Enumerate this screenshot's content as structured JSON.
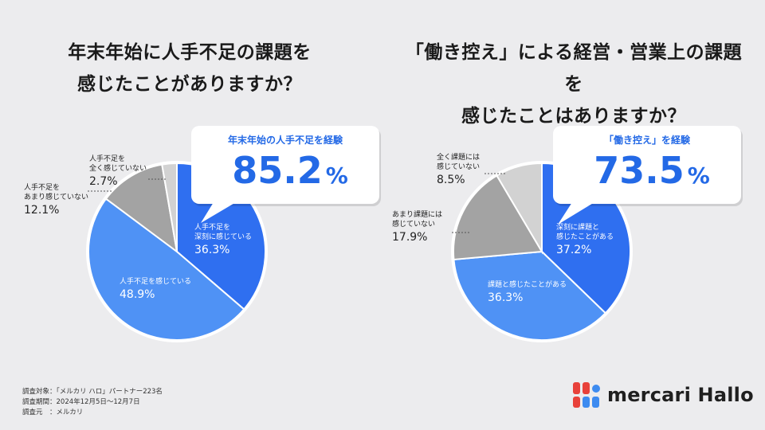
{
  "colors": {
    "background": "#ececee",
    "dark_blue": "#2f6ff0",
    "light_blue": "#4f92f5",
    "gray": "#a3a3a3",
    "light_gray": "#d2d2d2",
    "accent_blue": "#2369e6",
    "logo_red": "#e8413a",
    "logo_blue": "#3d8bf0"
  },
  "chart_data": [
    {
      "type": "pie",
      "title": "年末年始に人手不足の課題を感じたことがありますか？",
      "title_lines": [
        "年末年始に人手不足の課題を",
        "感じたことがありますか？"
      ],
      "slices": [
        {
          "label_lines": [
            "人手不足を",
            "深刻に感じている"
          ],
          "value": 36.3,
          "value_label": "36.3%"
        },
        {
          "label_lines": [
            "人手不足を感じている"
          ],
          "value": 48.9,
          "value_label": "48.9%"
        },
        {
          "label_lines": [
            "人手不足を",
            "あまり感じていない"
          ],
          "value": 12.1,
          "value_label": "12.1%"
        },
        {
          "label_lines": [
            "人手不足を",
            "全く感じていない"
          ],
          "value": 2.7,
          "value_label": "2.7%"
        }
      ],
      "callout": {
        "heading": "年末年始の人手不足を経験",
        "value": "85.2",
        "unit": "%"
      }
    },
    {
      "type": "pie",
      "title": "「働き控え」による経営・営業上の課題を感じたことはありますか？",
      "title_lines": [
        "「働き控え」による経営・営業上の課題を",
        "感じたことはありますか？"
      ],
      "slices": [
        {
          "label_lines": [
            "深刻に課題と",
            "感じたことがある"
          ],
          "value": 37.2,
          "value_label": "37.2%"
        },
        {
          "label_lines": [
            "課題と感じたことがある"
          ],
          "value": 36.3,
          "value_label": "36.3%"
        },
        {
          "label_lines": [
            "あまり課題には",
            "感じていない"
          ],
          "value": 17.9,
          "value_label": "17.9%"
        },
        {
          "label_lines": [
            "全く課題には",
            "感じていない"
          ],
          "value": 8.5,
          "value_label": "8.5%"
        }
      ],
      "callout": {
        "heading": "「働き控え」を経験",
        "value": "73.5",
        "unit": "%"
      }
    }
  ],
  "footer": {
    "lines": [
      "調査対象：「メルカリ ハロ」パートナー223名",
      "調査期間：2024年12月5日～12月7日",
      "調査元　：メルカリ"
    ]
  },
  "logo": {
    "text": "mercari Hallo",
    "icon": "mercari-hallo-logo-icon"
  }
}
